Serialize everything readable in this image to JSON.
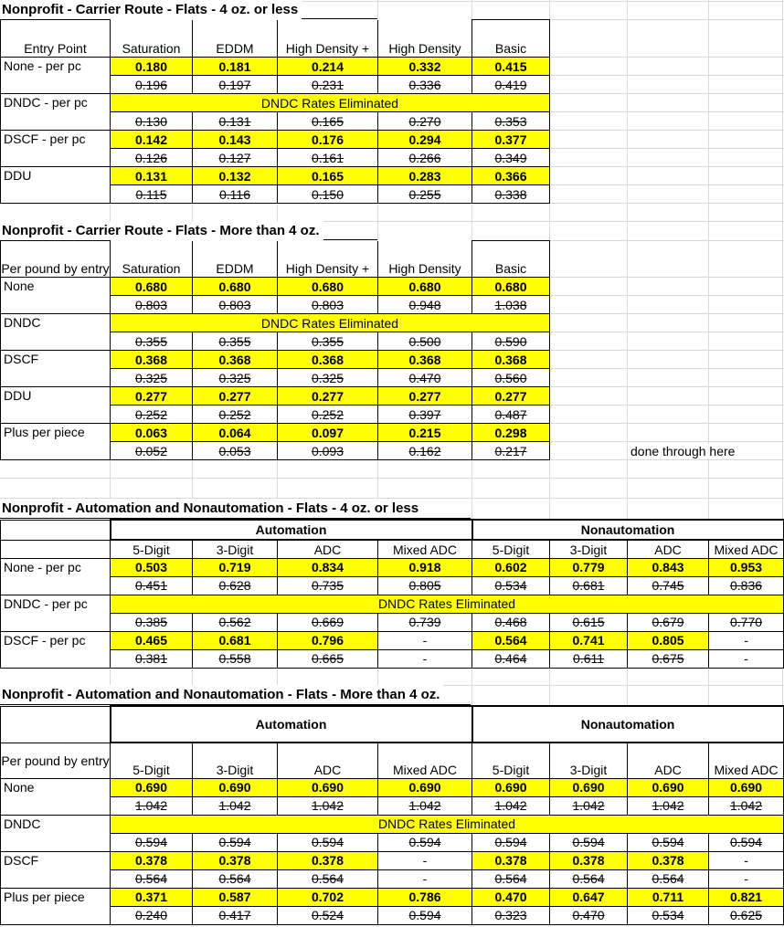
{
  "sheet": {
    "highlight_color": "#ffff00",
    "gridline_color": "#d9d9d9",
    "text_color": "#000000"
  },
  "note": "done through here",
  "tables": [
    {
      "title": "Nonprofit - Carrier Route - Flats - 4 oz. or less",
      "label_header": "Entry Point",
      "columns": [
        "Saturation",
        "EDDM",
        "High Density +",
        "High Density",
        "Basic"
      ],
      "rows": [
        {
          "label": "None - per pc",
          "current": [
            "0.180",
            "0.181",
            "0.214",
            "0.332",
            "0.415"
          ],
          "old": [
            "0.196",
            "0.197",
            "0.231",
            "0.336",
            "0.419"
          ]
        },
        {
          "label": "DNDC - per pc",
          "banner": "DNDC Rates Eliminated",
          "old": [
            "0.130",
            "0.131",
            "0.165",
            "0.270",
            "0.353"
          ]
        },
        {
          "label": "DSCF - per pc",
          "current": [
            "0.142",
            "0.143",
            "0.176",
            "0.294",
            "0.377"
          ],
          "old": [
            "0.126",
            "0.127",
            "0.161",
            "0.266",
            "0.349"
          ]
        },
        {
          "label": "DDU",
          "current": [
            "0.131",
            "0.132",
            "0.165",
            "0.283",
            "0.366"
          ],
          "old": [
            "0.115",
            "0.116",
            "0.150",
            "0.255",
            "0.338"
          ]
        }
      ]
    },
    {
      "title": "Nonprofit - Carrier Route - Flats - More than 4 oz.",
      "label_header": "Per pound by entry",
      "columns": [
        "Saturation",
        "EDDM",
        "High Density +",
        "High Density",
        "Basic"
      ],
      "rows": [
        {
          "label": "None",
          "current": [
            "0.680",
            "0.680",
            "0.680",
            "0.680",
            "0.680"
          ],
          "old": [
            "0.803",
            "0.803",
            "0.803",
            "0.948",
            "1.038"
          ]
        },
        {
          "label": "DNDC",
          "banner": "DNDC Rates Eliminated",
          "old": [
            "0.355",
            "0.355",
            "0.355",
            "0.500",
            "0.590"
          ]
        },
        {
          "label": "DSCF",
          "current": [
            "0.368",
            "0.368",
            "0.368",
            "0.368",
            "0.368"
          ],
          "old": [
            "0.325",
            "0.325",
            "0.325",
            "0.470",
            "0.560"
          ]
        },
        {
          "label": "DDU",
          "current": [
            "0.277",
            "0.277",
            "0.277",
            "0.277",
            "0.277"
          ],
          "old": [
            "0.252",
            "0.252",
            "0.252",
            "0.397",
            "0.487"
          ]
        },
        {
          "label": "Plus per piece",
          "current": [
            "0.063",
            "0.064",
            "0.097",
            "0.215",
            "0.298"
          ],
          "old": [
            "0.052",
            "0.053",
            "0.093",
            "0.162",
            "0.217"
          ]
        }
      ]
    },
    {
      "title": "Nonprofit - Automation and Nonautomation - Flats - 4 oz. or less",
      "label_header": "",
      "groups": [
        "Automation",
        "Nonautomation"
      ],
      "columns": [
        "5-Digit",
        "3-Digit",
        "ADC",
        "Mixed ADC",
        "5-Digit",
        "3-Digit",
        "ADC",
        "Mixed ADC"
      ],
      "rows": [
        {
          "label": "None - per pc",
          "current": [
            "0.503",
            "0.719",
            "0.834",
            "0.918",
            "0.602",
            "0.779",
            "0.843",
            "0.953"
          ],
          "old": [
            "0.451",
            "0.628",
            "0.735",
            "0.805",
            "0.534",
            "0.681",
            "0.745",
            "0.836"
          ]
        },
        {
          "label": "DNDC - per pc",
          "banner": "DNDC Rates Eliminated",
          "old": [
            "0.385",
            "0.562",
            "0.669",
            "0.739",
            "0.468",
            "0.615",
            "0.679",
            "0.770"
          ]
        },
        {
          "label": "DSCF - per pc",
          "current": [
            "0.465",
            "0.681",
            "0.796",
            "-",
            "0.564",
            "0.741",
            "0.805",
            "-"
          ],
          "old": [
            "0.381",
            "0.558",
            "0.665",
            "-",
            "0.464",
            "0.611",
            "0.675",
            "-"
          ]
        }
      ]
    },
    {
      "title": "Nonprofit - Automation and Nonautomation - Flats - More than 4 oz.",
      "label_header": "Per pound by entry",
      "groups": [
        "Automation",
        "Nonautomation"
      ],
      "columns": [
        "5-Digit",
        "3-Digit",
        "ADC",
        "Mixed ADC",
        "5-Digit",
        "3-Digit",
        "ADC",
        "Mixed ADC"
      ],
      "rows": [
        {
          "label": "None",
          "current": [
            "0.690",
            "0.690",
            "0.690",
            "0.690",
            "0.690",
            "0.690",
            "0.690",
            "0.690"
          ],
          "old": [
            "1.042",
            "1.042",
            "1.042",
            "1.042",
            "1.042",
            "1.042",
            "1.042",
            "1.042"
          ]
        },
        {
          "label": "DNDC",
          "banner": "DNDC Rates Eliminated",
          "old": [
            "0.594",
            "0.594",
            "0.594",
            "0.594",
            "0.594",
            "0.594",
            "0.594",
            "0.594"
          ]
        },
        {
          "label": "DSCF",
          "current": [
            "0.378",
            "0.378",
            "0.378",
            "-",
            "0.378",
            "0.378",
            "0.378",
            "-"
          ],
          "old": [
            "0.564",
            "0.564",
            "0.564",
            "-",
            "0.564",
            "0.564",
            "0.564",
            "-"
          ]
        },
        {
          "label": "Plus per piece",
          "current": [
            "0.371",
            "0.587",
            "0.702",
            "0.786",
            "0.470",
            "0.647",
            "0.711",
            "0.821"
          ],
          "old": [
            "0.240",
            "0.417",
            "0.524",
            "0.594",
            "0.323",
            "0.470",
            "0.534",
            "0.625"
          ]
        }
      ]
    }
  ]
}
